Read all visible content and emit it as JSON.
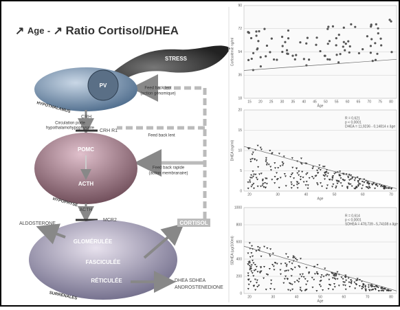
{
  "title": {
    "arrow_age": "↗",
    "age": "Age",
    "separator": "-",
    "arrow_ratio": "↗",
    "ratio": "Ratio Cortisol/DHEA"
  },
  "diagram": {
    "stress": "STRESS",
    "pv": "PV",
    "hypothalamus": "HYPOTHALAMUS",
    "crh": "CRH",
    "portal_line1": "Circulation porte",
    "portal_line2": "hypothalamohypophysaire",
    "crh_r1": "CRH R1",
    "slow_feedback_genomic_line1": "Feed back lent",
    "slow_feedback_genomic_line2": "(action génomique)",
    "slow_feedback": "Feed back lent",
    "fast_feedback_line1": "Feed back rapide",
    "fast_feedback_line2": "(action membranaire)",
    "pomc": "POMC",
    "acth_pituitary": "ACTH",
    "hypophyse": "HYPOPHYSE",
    "acth": "ACTH",
    "mcr2": "MCR2",
    "cortisol": "CORTISOL",
    "aldosterone": "ALDOSTERONE",
    "glomerulee": "GLOMÉRULÉE",
    "fasciculee": "FASCICULÉE",
    "reticulee": "RÉTICULÉE",
    "surrenales": "SURRÉNALES",
    "output_line1": "DHEA SDHEA",
    "output_line2": "ANDROSTENEDIONE"
  },
  "plots": [
    {
      "ylabel": "Cortisolémie ng/ml",
      "yticks": [
        18,
        36,
        54,
        72,
        90
      ],
      "xticks": [
        15,
        20,
        25,
        30,
        35,
        40,
        45,
        50,
        55,
        60,
        65,
        70,
        75,
        80
      ],
      "xlabel": "Âge",
      "notes": []
    },
    {
      "ylabel": "DHEA (ng/ml)",
      "yticks": [
        0,
        5,
        10,
        15,
        20
      ],
      "xticks": [
        20,
        30,
        40,
        50,
        60,
        70
      ],
      "xlabel": "Age",
      "notes": [
        "R = 0,621",
        "p < 0,0001",
        "DHEA = 11,9236 - 0,14814 x âge"
      ]
    },
    {
      "ylabel": "SDHEA (µg/100ml)",
      "yticks": [
        0,
        200,
        400,
        600,
        800,
        1000
      ],
      "xticks": [
        20,
        30,
        40,
        50,
        60,
        70,
        80
      ],
      "xlabel": "Age",
      "notes": [
        "R = 0,614",
        "p < 0,0001",
        "SDHEA = 478,739 - 5,74108 x âge"
      ]
    }
  ]
}
